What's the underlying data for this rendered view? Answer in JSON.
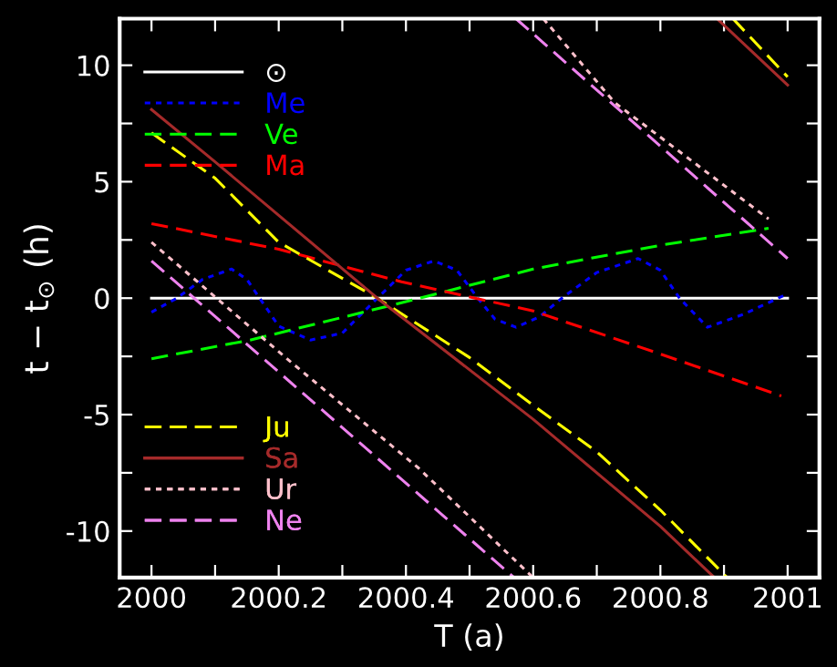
{
  "chart_data": {
    "type": "line",
    "xlabel": "T (a)",
    "ylabel": "t − t$_{⊙}$ (h)",
    "xlim": [
      1999.95,
      2001.05
    ],
    "ylim": [
      -12,
      12
    ],
    "xticks": [
      2000,
      {
        "value": 2000.1,
        "label": null
      },
      2000.2,
      {
        "value": 2000.3,
        "label": null
      },
      2000.4,
      {
        "value": 2000.5,
        "label": null
      },
      2000.6,
      {
        "value": 2000.7,
        "label": null
      },
      2000.8,
      {
        "value": 2000.9,
        "label": null
      },
      2001
    ],
    "yticks": [
      -10,
      {
        "value": -7.5,
        "label": null
      },
      -5,
      {
        "value": -2.5,
        "label": null
      },
      0,
      {
        "value": 2.5,
        "label": null
      },
      5,
      {
        "value": 7.5,
        "label": null
      },
      10
    ],
    "grid": false,
    "legend": "left",
    "series": [
      {
        "name": "⊙",
        "color": "#ffffff",
        "line_style": "solid",
        "x": [
          2000,
          2001
        ],
        "values": [
          0,
          0
        ]
      },
      {
        "name": "Me",
        "color": "#0000ff",
        "line_style": "dotted",
        "x": [
          2000,
          2000.04,
          2000.08,
          2000.126,
          2000.15,
          2000.17,
          2000.2,
          2000.25,
          2000.3,
          2000.355,
          2000.4,
          2000.444,
          2000.48,
          2000.513,
          2000.54,
          2000.573,
          2000.61,
          2000.645,
          2000.7,
          2000.765,
          2000.8,
          2000.83,
          2000.874,
          2000.93,
          2000.997
        ],
        "values": [
          -0.6,
          0.0,
          0.8,
          1.25,
          0.8,
          0,
          -1.2,
          -1.8,
          -1.5,
          0,
          1.2,
          1.6,
          1.2,
          0,
          -0.9,
          -1.25,
          -0.8,
          0,
          1.1,
          1.7,
          1.2,
          0,
          -1.25,
          -0.7,
          0.15
        ]
      },
      {
        "name": "Ve",
        "color": "#00ff00",
        "line_style": "dashed",
        "x": [
          2000,
          2000.155,
          2000.393,
          2000.6,
          2000.8,
          2000.97
        ],
        "values": [
          -2.6,
          -1.8,
          -0.2,
          1.25,
          2.27,
          3.0
        ]
      },
      {
        "name": "Ma",
        "color": "#ff0000",
        "line_style": "dashed",
        "x": [
          2000,
          2000.2,
          2000.393,
          2000.6,
          2000.8,
          2000.99
        ],
        "values": [
          3.2,
          2.1,
          0.7,
          -0.55,
          -2.4,
          -4.2
        ]
      },
      {
        "name": "Ju",
        "color": "#ffff00",
        "line_style": "dashed",
        "x": [
          2000,
          2000.1,
          2000.2,
          2000.355,
          2000.5,
          2000.6,
          2000.7,
          2000.8,
          2000.905,
          2000.91,
          2000.914,
          2001
        ],
        "values": [
          7.1,
          5.15,
          2.4,
          0,
          -2.55,
          -4.6,
          -6.6,
          -9.1,
          -12,
          null,
          12,
          9.5
        ]
      },
      {
        "name": "Sa",
        "color": "#a52a2a",
        "line_style": "solid",
        "x": [
          2000,
          2000.1,
          2000.355,
          2000.6,
          2000.8,
          2000.885,
          2000.887,
          2000.889,
          2001
        ],
        "values": [
          8.1,
          5.85,
          0,
          -5.2,
          -9.8,
          -12,
          null,
          12,
          9.15
        ]
      },
      {
        "name": "Ur",
        "color": "#ffc0cb",
        "line_style": "dotted",
        "x": [
          2000,
          2000.215,
          2000.42,
          2000.6,
          2000.608,
          2000.616,
          2000.728,
          2000.97
        ],
        "values": [
          2.4,
          -2.65,
          -7.3,
          -12,
          null,
          12,
          8.4,
          3.4
        ]
      },
      {
        "name": "Ne",
        "color": "#ee82ee",
        "line_style": "dashed",
        "x": [
          2000,
          2000.57,
          2000.571,
          2000.573,
          2001
        ],
        "values": [
          1.6,
          -12,
          null,
          12,
          1.7
        ]
      }
    ]
  }
}
